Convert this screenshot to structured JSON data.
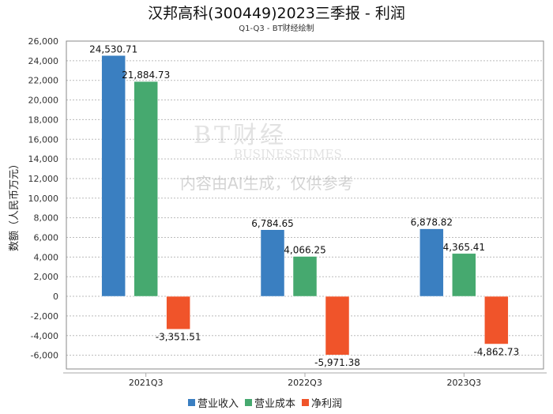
{
  "title": "汉邦高科(300449)2023三季报 - 利润",
  "subtitle": "Q1-Q3 - BT财经绘制",
  "watermark": {
    "logo": "BT财经",
    "logo_sub": "BUSINESSTIMES",
    "notice": "内容由AI生成，仅供参考"
  },
  "chart_data": {
    "type": "bar",
    "title": "汉邦高科(300449)2023三季报 - 利润",
    "subtitle": "Q1-Q3 - BT财经绘制",
    "ylabel": "数额（人民币万元）",
    "xlabel": "",
    "categories": [
      "2021Q3",
      "2022Q3",
      "2023Q3"
    ],
    "ylim": [
      -7400,
      26000
    ],
    "yticks": [
      -6000,
      -4000,
      -2000,
      0,
      2000,
      4000,
      6000,
      8000,
      10000,
      12000,
      14000,
      16000,
      18000,
      20000,
      22000,
      24000,
      26000
    ],
    "grid": true,
    "legend": "bottom",
    "series": [
      {
        "name": "营业收入",
        "color": "#3a7fc1",
        "values": [
          24530.71,
          6784.65,
          6878.82
        ]
      },
      {
        "name": "营业成本",
        "color": "#46a96f",
        "values": [
          21884.73,
          4066.25,
          4365.41
        ]
      },
      {
        "name": "净利润",
        "color": "#f0542a",
        "values": [
          -3351.51,
          -5971.38,
          -4862.73
        ]
      }
    ]
  }
}
